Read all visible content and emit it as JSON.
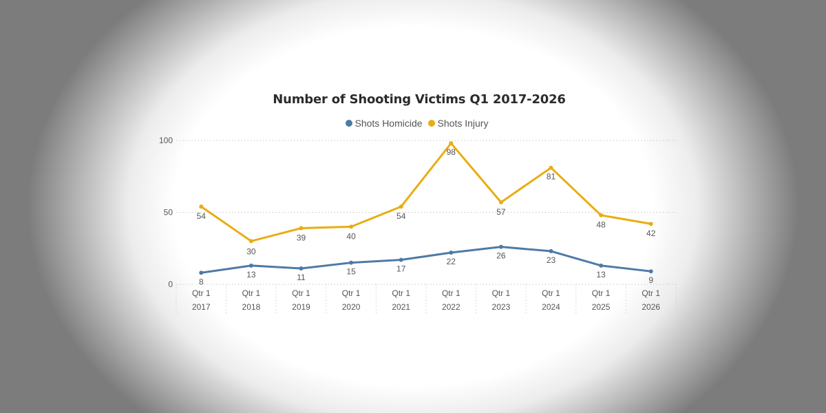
{
  "chart_data": {
    "type": "line",
    "title": "Number of Shooting Victims Q1 2017-2026",
    "categories": [
      [
        "Qtr 1",
        "2017"
      ],
      [
        "Qtr 1",
        "2018"
      ],
      [
        "Qtr 1",
        "2019"
      ],
      [
        "Qtr 1",
        "2020"
      ],
      [
        "Qtr 1",
        "2021"
      ],
      [
        "Qtr 1",
        "2022"
      ],
      [
        "Qtr 1",
        "2023"
      ],
      [
        "Qtr 1",
        "2024"
      ],
      [
        "Qtr 1",
        "2025"
      ],
      [
        "Qtr 1",
        "2026"
      ]
    ],
    "series": [
      {
        "name": "Shots Homicide",
        "color": "#4e7aa6",
        "values": [
          8,
          13,
          11,
          15,
          17,
          22,
          26,
          23,
          13,
          9
        ]
      },
      {
        "name": "Shots Injury",
        "color": "#e8ad11",
        "values": [
          54,
          30,
          39,
          40,
          54,
          98,
          57,
          81,
          48,
          42
        ]
      }
    ],
    "ylim": [
      0,
      100
    ],
    "yticks": [
      "0",
      "50",
      "100"
    ],
    "grid": true,
    "legend": "top-center"
  }
}
